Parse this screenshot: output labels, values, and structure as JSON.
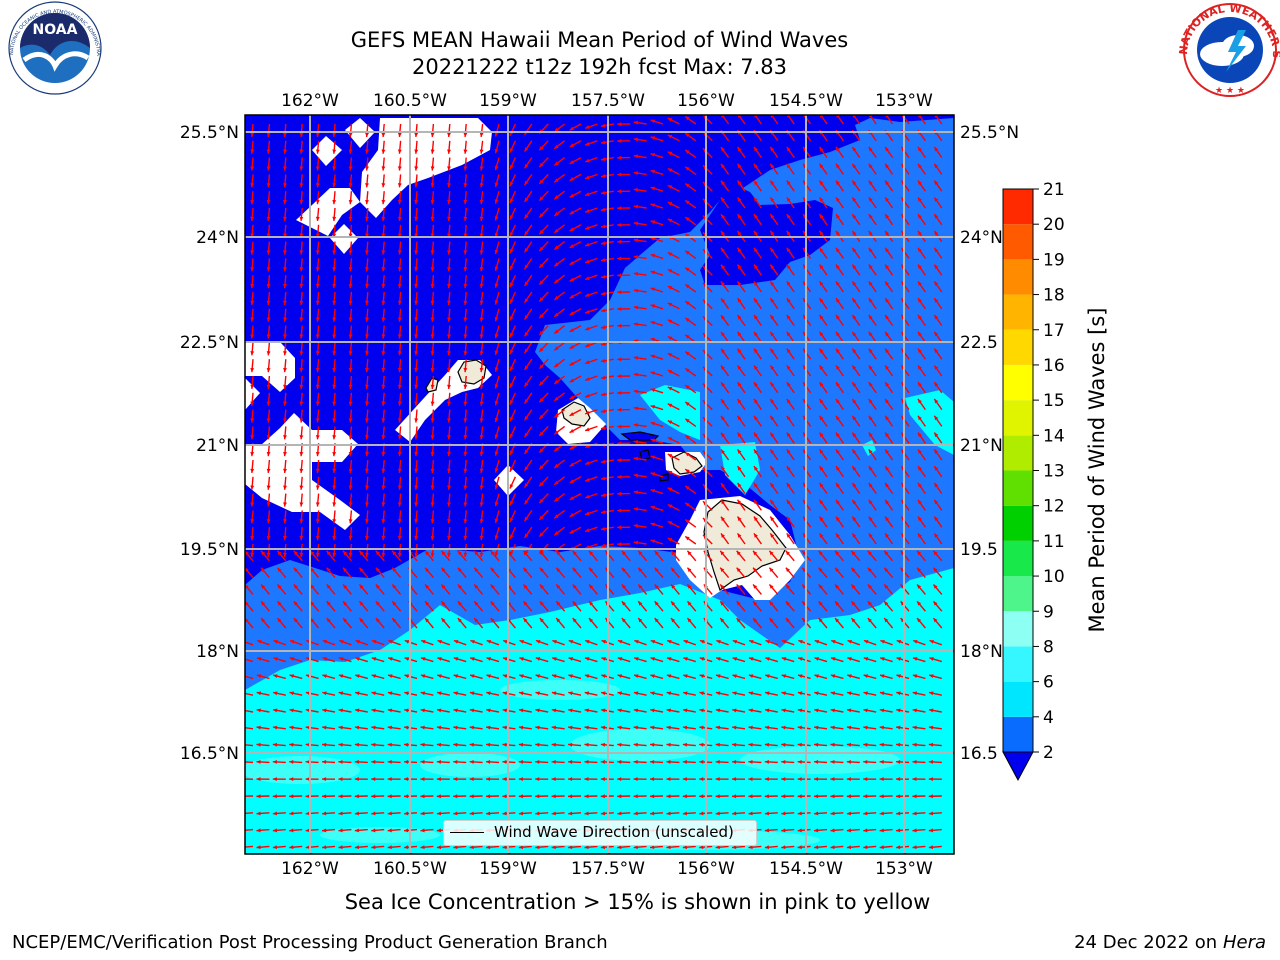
{
  "title_line1": "GEFS MEAN Hawaii Mean Period of Wind Waves",
  "title_line2": "20221222 t12z 192h fcst   Max: 7.83",
  "logos": {
    "noaa_left": {
      "text": "NOAA",
      "ring_text": "NATIONAL OCEANIC AND ATMOSPHERIC ADMINISTRATION · U.S. DEPARTMENT OF COMMERCE",
      "color": "#1a6fb5"
    },
    "nws_right": {
      "ring_text": "NATIONAL WEATHER SERVICE",
      "color": "#d22"
    }
  },
  "map": {
    "lon_ticks": [
      "162°W",
      "160.5°W",
      "159°W",
      "157.5°W",
      "156°W",
      "154.5°W",
      "153°W"
    ],
    "lat_ticks_left": [
      "25.5°N",
      "24°N",
      "22.5°N",
      "21°N",
      "19.5°N",
      "18°N",
      "16.5°N"
    ],
    "lat_ticks_right": [
      "25.5°N",
      "24°N",
      "22.5",
      "21°N",
      "19.5",
      "18°N",
      "16.5"
    ],
    "lon_range": [
      -163.0,
      -152.7
    ],
    "lat_range": [
      15.2,
      25.75
    ],
    "arrow_color": "#ff0000",
    "fill_colors": {
      "period_0_2": "#0000ee",
      "period_2_4": "#1e78ff",
      "period_4_6": "#00ffff",
      "period_6_8": "#44fff8",
      "land": "#efebd8",
      "missing": "#ffffff"
    }
  },
  "legend_text": "Wind Wave Direction (unscaled)",
  "colorbar": {
    "title": "Mean Period of Wind Waves [s]",
    "levels": [
      "2",
      "4",
      "6",
      "8",
      "9",
      "10",
      "11",
      "12",
      "13",
      "14",
      "15",
      "16",
      "17",
      "18",
      "19",
      "20",
      "21"
    ],
    "colors": [
      "#0a6cff",
      "#00e6ff",
      "#36f7ff",
      "#8dfff3",
      "#4ef58a",
      "#18e84a",
      "#00d000",
      "#60e000",
      "#b0ec00",
      "#e0f400",
      "#ffff00",
      "#ffd800",
      "#ffb400",
      "#ff8c00",
      "#ff5a00",
      "#ff2a00"
    ],
    "under_color": "#0000ee"
  },
  "note": "Sea Ice Concentration > 15% is shown in pink to yellow",
  "footer_left": "NCEP/EMC/Verification Post Processing Product Generation Branch",
  "footer_date": "24 Dec 2022 on",
  "footer_host": "Hera"
}
